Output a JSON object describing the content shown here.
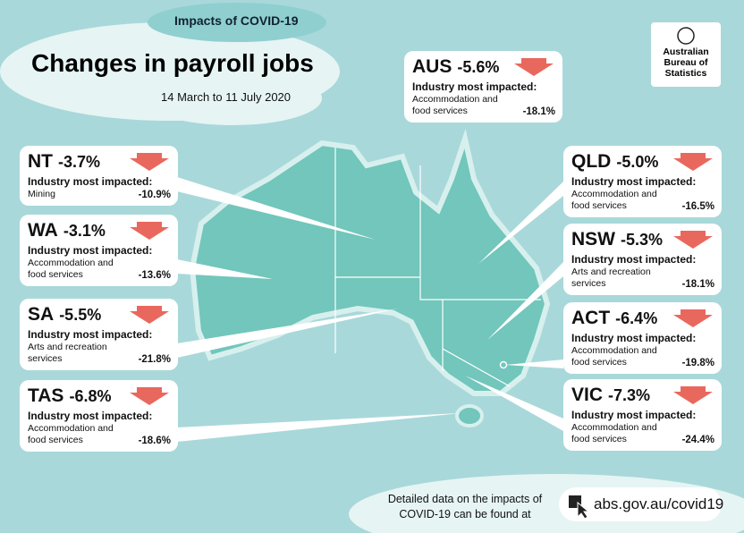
{
  "header": {
    "banner": "Impacts of COVID-19",
    "title": "Changes in payroll jobs",
    "subtitle": "14 March to 11 July 2020"
  },
  "logo": {
    "lines": [
      "Australian",
      "Bureau of",
      "Statistics"
    ]
  },
  "regions": [
    {
      "name": "AUS",
      "change": "-5.6%",
      "industry_label": "Industry most impacted:",
      "industry": "Accommodation and food services",
      "industry_change": "-18.1%"
    },
    {
      "name": "NT",
      "change": "-3.7%",
      "industry_label": "Industry most impacted:",
      "industry": "Mining",
      "industry_change": "-10.9%"
    },
    {
      "name": "WA",
      "change": "-3.1%",
      "industry_label": "Industry most impacted:",
      "industry": "Accommodation and food services",
      "industry_change": "-13.6%"
    },
    {
      "name": "SA",
      "change": "-5.5%",
      "industry_label": "Industry most impacted:",
      "industry": "Arts and recreation services",
      "industry_change": "-21.8%"
    },
    {
      "name": "TAS",
      "change": "-6.8%",
      "industry_label": "Industry most impacted:",
      "industry": "Accommodation and food services",
      "industry_change": "-18.6%"
    },
    {
      "name": "QLD",
      "change": "-5.0%",
      "industry_label": "Industry most impacted:",
      "industry": "Accommodation and food services",
      "industry_change": "-16.5%"
    },
    {
      "name": "NSW",
      "change": "-5.3%",
      "industry_label": "Industry most impacted:",
      "industry": "Arts and recreation services",
      "industry_change": "-18.1%"
    },
    {
      "name": "ACT",
      "change": "-6.4%",
      "industry_label": "Industry most impacted:",
      "industry": "Accommodation and food services",
      "industry_change": "-19.8%"
    },
    {
      "name": "VIC",
      "change": "-7.3%",
      "industry_label": "Industry most impacted:",
      "industry": "Accommodation and food services",
      "industry_change": "-24.4%"
    }
  ],
  "footer": {
    "text": "Detailed data on the impacts of COVID-19 can be found at",
    "link": "abs.gov.au/covid19"
  }
}
